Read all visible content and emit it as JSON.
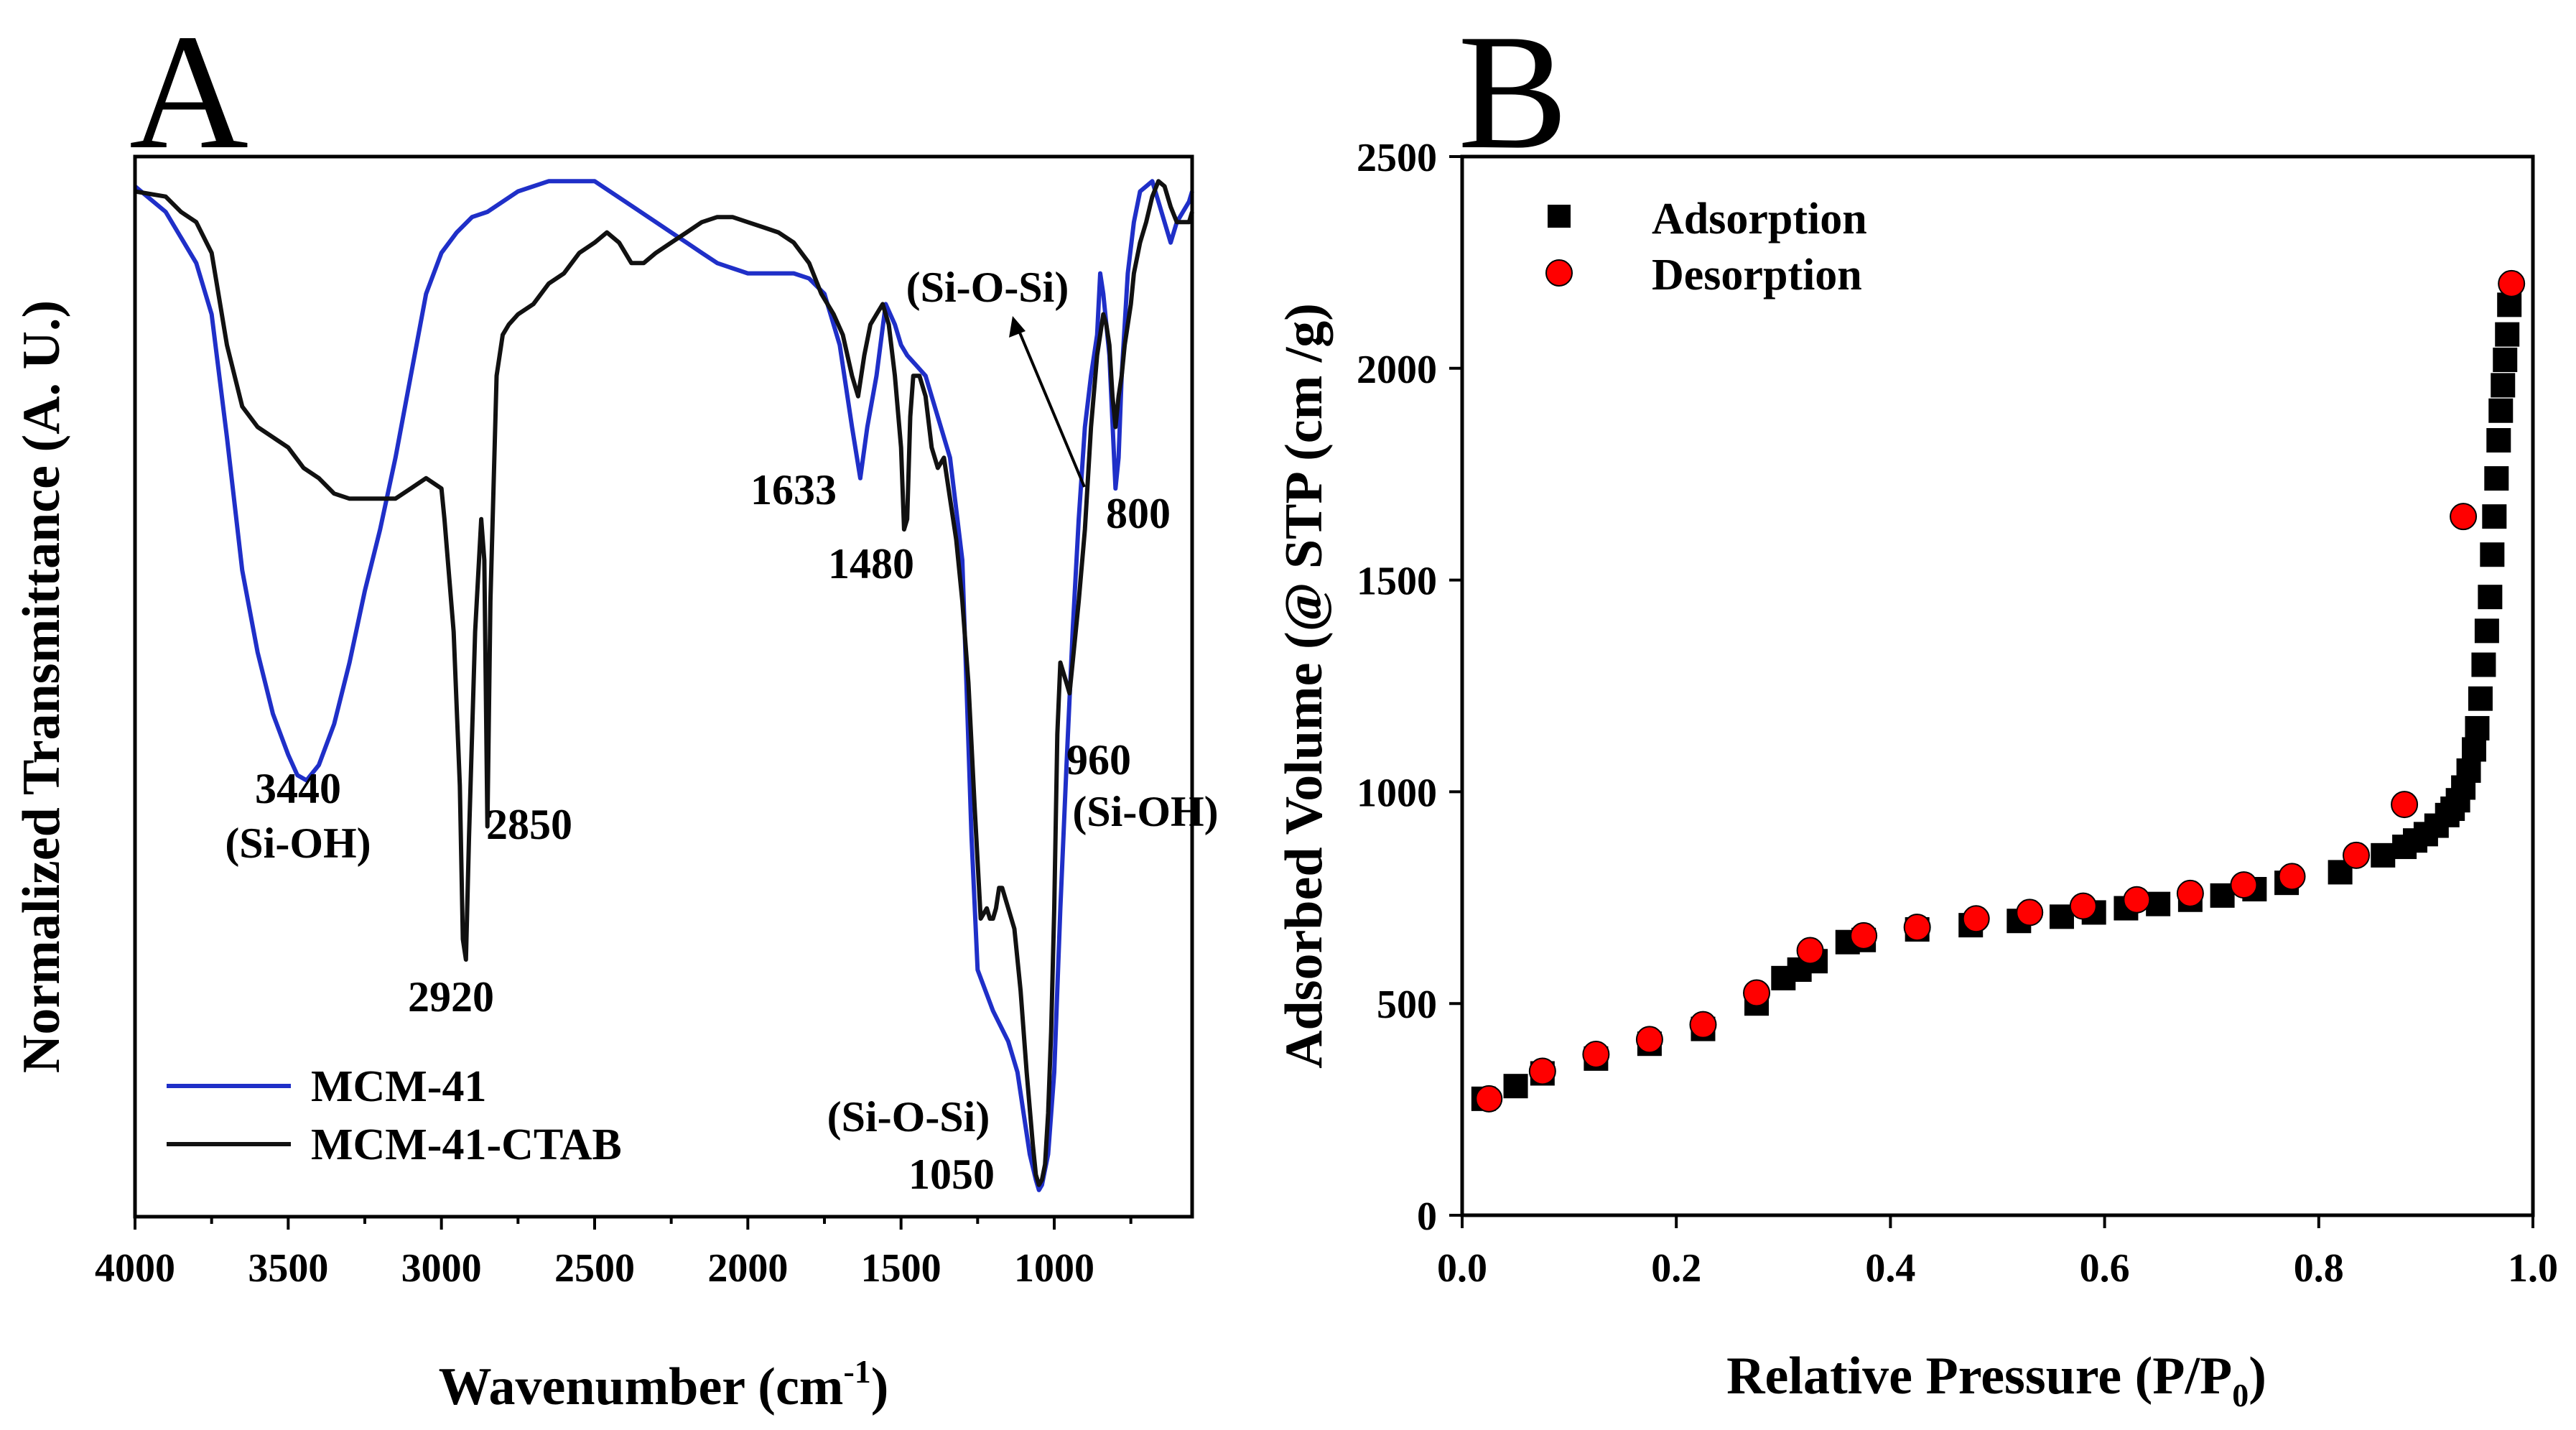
{
  "colors": {
    "mcm41": "#1f2fc8",
    "ctab": "#111111",
    "desorption": "#ff0000",
    "adsorption": "#000000"
  },
  "chart_data": [
    {
      "panel": "A",
      "type": "line",
      "xlabel": "Wavenumber (cm",
      "xlabel_sup": "-1",
      "xlabel_end": ")",
      "ylabel": "Normalized Transmittance (A. U.)",
      "xlim": [
        4000,
        550
      ],
      "ylim": [
        0,
        1
      ],
      "xticks": [
        "4000",
        "3500",
        "3000",
        "2500",
        "2000",
        "1500",
        "1000"
      ],
      "xtick_values": [
        4000,
        3500,
        3000,
        2500,
        2000,
        1500,
        1000
      ],
      "legend": [
        "MCM-41",
        "MCM-41-CTAB"
      ],
      "annotations": [
        "3440",
        "(Si-OH)",
        "2920",
        "2850",
        "1633",
        "1480",
        "(Si-O-Si)",
        "800",
        "960",
        "(Si-OH)",
        "(Si-O-Si)",
        "1050"
      ],
      "series": [
        {
          "name": "MCM-41",
          "x": [
            4000,
            3900,
            3800,
            3750,
            3700,
            3650,
            3600,
            3550,
            3500,
            3470,
            3440,
            3400,
            3350,
            3300,
            3250,
            3200,
            3150,
            3100,
            3050,
            3000,
            2950,
            2900,
            2850,
            2800,
            2750,
            2700,
            2650,
            2600,
            2550,
            2500,
            2450,
            2400,
            2350,
            2300,
            2250,
            2200,
            2150,
            2100,
            2050,
            2000,
            1950,
            1900,
            1850,
            1800,
            1750,
            1700,
            1660,
            1633,
            1610,
            1580,
            1550,
            1520,
            1500,
            1480,
            1450,
            1420,
            1400,
            1370,
            1340,
            1300,
            1270,
            1250,
            1200,
            1150,
            1120,
            1100,
            1080,
            1060,
            1050,
            1040,
            1020,
            1000,
            980,
            960,
            940,
            920,
            900,
            880,
            860,
            850,
            840,
            820,
            800,
            790,
            780,
            760,
            740,
            720,
            700,
            680,
            660,
            640,
            620,
            600,
            580,
            560,
            550
          ],
          "y": [
            0.985,
            0.96,
            0.91,
            0.86,
            0.74,
            0.61,
            0.53,
            0.47,
            0.43,
            0.41,
            0.405,
            0.42,
            0.46,
            0.52,
            0.59,
            0.65,
            0.72,
            0.8,
            0.88,
            0.92,
            0.94,
            0.955,
            0.96,
            0.97,
            0.98,
            0.985,
            0.99,
            0.99,
            0.99,
            0.99,
            0.98,
            0.97,
            0.96,
            0.95,
            0.94,
            0.93,
            0.92,
            0.91,
            0.905,
            0.9,
            0.9,
            0.9,
            0.9,
            0.895,
            0.88,
            0.83,
            0.75,
            0.7,
            0.75,
            0.8,
            0.87,
            0.85,
            0.83,
            0.82,
            0.81,
            0.8,
            0.78,
            0.75,
            0.72,
            0.62,
            0.35,
            0.22,
            0.18,
            0.15,
            0.12,
            0.08,
            0.04,
            0.015,
            0.005,
            0.01,
            0.04,
            0.12,
            0.28,
            0.42,
            0.55,
            0.66,
            0.75,
            0.8,
            0.84,
            0.9,
            0.88,
            0.82,
            0.69,
            0.72,
            0.8,
            0.9,
            0.95,
            0.98,
            0.985,
            0.99,
            0.97,
            0.95,
            0.93,
            0.95,
            0.96,
            0.97,
            0.98
          ]
        },
        {
          "name": "MCM-41-CTAB",
          "x": [
            4000,
            3900,
            3850,
            3800,
            3750,
            3700,
            3650,
            3600,
            3550,
            3500,
            3450,
            3400,
            3350,
            3300,
            3250,
            3200,
            3150,
            3100,
            3050,
            3000,
            2990,
            2960,
            2940,
            2930,
            2920,
            2910,
            2890,
            2870,
            2860,
            2850,
            2840,
            2820,
            2800,
            2780,
            2750,
            2700,
            2650,
            2600,
            2550,
            2500,
            2460,
            2420,
            2380,
            2340,
            2300,
            2250,
            2200,
            2150,
            2100,
            2050,
            2000,
            1950,
            1900,
            1850,
            1800,
            1760,
            1720,
            1690,
            1660,
            1640,
            1620,
            1600,
            1580,
            1560,
            1540,
            1520,
            1500,
            1490,
            1480,
            1470,
            1460,
            1440,
            1420,
            1400,
            1380,
            1360,
            1340,
            1320,
            1300,
            1280,
            1260,
            1240,
            1220,
            1210,
            1200,
            1190,
            1180,
            1170,
            1150,
            1130,
            1110,
            1090,
            1070,
            1060,
            1050,
            1040,
            1030,
            1020,
            1010,
            1000,
            990,
            980,
            970,
            960,
            950,
            940,
            920,
            900,
            880,
            860,
            840,
            830,
            820,
            810,
            800,
            790,
            780,
            770,
            760,
            750,
            740,
            720,
            700,
            680,
            660,
            640,
            620,
            600,
            580,
            560,
            550
          ],
          "y": [
            0.98,
            0.975,
            0.96,
            0.95,
            0.92,
            0.83,
            0.77,
            0.75,
            0.74,
            0.73,
            0.71,
            0.7,
            0.685,
            0.68,
            0.68,
            0.68,
            0.68,
            0.69,
            0.7,
            0.69,
            0.66,
            0.55,
            0.4,
            0.25,
            0.23,
            0.35,
            0.55,
            0.66,
            0.62,
            0.36,
            0.58,
            0.8,
            0.84,
            0.85,
            0.86,
            0.87,
            0.89,
            0.9,
            0.92,
            0.93,
            0.94,
            0.93,
            0.91,
            0.91,
            0.92,
            0.93,
            0.94,
            0.95,
            0.955,
            0.955,
            0.95,
            0.945,
            0.94,
            0.93,
            0.91,
            0.88,
            0.86,
            0.84,
            0.8,
            0.78,
            0.82,
            0.85,
            0.86,
            0.87,
            0.85,
            0.8,
            0.73,
            0.65,
            0.66,
            0.76,
            0.8,
            0.8,
            0.78,
            0.73,
            0.71,
            0.72,
            0.68,
            0.64,
            0.58,
            0.5,
            0.38,
            0.27,
            0.28,
            0.27,
            0.27,
            0.28,
            0.3,
            0.3,
            0.28,
            0.26,
            0.2,
            0.12,
            0.05,
            0.02,
            0.01,
            0.015,
            0.03,
            0.08,
            0.16,
            0.28,
            0.45,
            0.52,
            0.51,
            0.5,
            0.49,
            0.52,
            0.58,
            0.65,
            0.75,
            0.82,
            0.86,
            0.85,
            0.83,
            0.78,
            0.75,
            0.78,
            0.8,
            0.83,
            0.85,
            0.87,
            0.9,
            0.93,
            0.95,
            0.975,
            0.99,
            0.985,
            0.965,
            0.95,
            0.95,
            0.95,
            0.96
          ]
        }
      ]
    },
    {
      "panel": "B",
      "type": "scatter",
      "xlabel": "Relative Pressure (P/P",
      "xlabel_sub": "0",
      "xlabel_end": ")",
      "ylabel": "Adsorbed Volume (@ STP (cm /g)",
      "xlim": [
        0,
        1
      ],
      "ylim": [
        0,
        2500
      ],
      "xticks": [
        "0.0",
        "0.2",
        "0.4",
        "0.6",
        "0.8",
        "1.0"
      ],
      "xtick_values": [
        0,
        0.2,
        0.4,
        0.6,
        0.8,
        1.0
      ],
      "yticks": [
        "0",
        "500",
        "1000",
        "1500",
        "2000",
        "2500"
      ],
      "ytick_values": [
        0,
        500,
        1000,
        1500,
        2000,
        2500
      ],
      "legend": [
        "Adsorption",
        "Desorption"
      ],
      "series": [
        {
          "name": "Adsorption",
          "marker": "square",
          "x": [
            0.02,
            0.05,
            0.075,
            0.125,
            0.175,
            0.225,
            0.275,
            0.3,
            0.315,
            0.33,
            0.36,
            0.375,
            0.425,
            0.475,
            0.52,
            0.56,
            0.59,
            0.62,
            0.65,
            0.68,
            0.71,
            0.74,
            0.77,
            0.82,
            0.86,
            0.88,
            0.89,
            0.9,
            0.91,
            0.92,
            0.925,
            0.93,
            0.935,
            0.94,
            0.945,
            0.948,
            0.951,
            0.954,
            0.957,
            0.96,
            0.962,
            0.964,
            0.966,
            0.968,
            0.97,
            0.972,
            0.974,
            0.976,
            0.978
          ],
          "y": [
            275,
            305,
            335,
            370,
            405,
            440,
            500,
            560,
            580,
            600,
            645,
            650,
            675,
            685,
            695,
            705,
            715,
            725,
            735,
            745,
            755,
            770,
            785,
            810,
            850,
            870,
            885,
            900,
            920,
            945,
            960,
            980,
            1010,
            1050,
            1100,
            1150,
            1220,
            1300,
            1380,
            1460,
            1560,
            1650,
            1740,
            1830,
            1900,
            1960,
            2020,
            2080,
            2150
          ]
        },
        {
          "name": "Desorption",
          "marker": "circle",
          "x": [
            0.025,
            0.075,
            0.125,
            0.175,
            0.225,
            0.275,
            0.325,
            0.375,
            0.425,
            0.48,
            0.53,
            0.58,
            0.63,
            0.68,
            0.73,
            0.775,
            0.835,
            0.88,
            0.935,
            0.98
          ],
          "y": [
            275,
            340,
            380,
            415,
            450,
            525,
            625,
            660,
            680,
            700,
            715,
            730,
            745,
            760,
            780,
            800,
            850,
            970,
            1650,
            2200
          ]
        }
      ]
    }
  ]
}
